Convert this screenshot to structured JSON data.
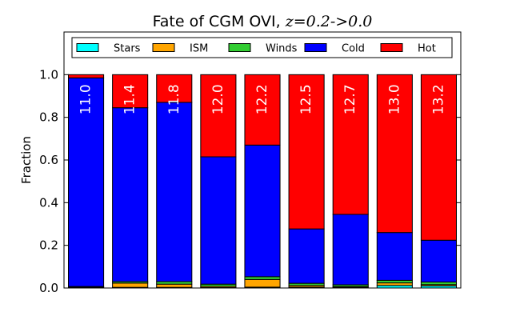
{
  "chart_data": {
    "type": "bar",
    "stacked": true,
    "title": "Fate of CGM OVI, ",
    "title_math": "z=0.2->0.0",
    "xlabel": "",
    "ylabel": "Fraction",
    "ylim": [
      0,
      1.2
    ],
    "yticks": [
      "0.0",
      "0.2",
      "0.4",
      "0.6",
      "0.8",
      "1.0"
    ],
    "grid": false,
    "legend_position": "top",
    "categories": [
      "11.0",
      "11.4",
      "11.8",
      "12.0",
      "12.2",
      "12.5",
      "12.7",
      "13.0",
      "13.2"
    ],
    "series": [
      {
        "name": "Stars",
        "color": "#00ffff",
        "values": [
          0.002,
          0.003,
          0.003,
          0.002,
          0.004,
          0.004,
          0.003,
          0.012,
          0.01
        ]
      },
      {
        "name": "ISM",
        "color": "#ffa500",
        "values": [
          0.003,
          0.02,
          0.015,
          0.006,
          0.036,
          0.008,
          0.004,
          0.012,
          0.006
        ]
      },
      {
        "name": "Winds",
        "color": "#32cd32",
        "values": [
          0.002,
          0.007,
          0.012,
          0.01,
          0.013,
          0.01,
          0.008,
          0.012,
          0.012
        ]
      },
      {
        "name": "Cold",
        "color": "#0000ff",
        "values": [
          0.978,
          0.815,
          0.84,
          0.597,
          0.617,
          0.255,
          0.33,
          0.224,
          0.196
        ]
      },
      {
        "name": "Hot",
        "color": "#ff0000",
        "values": [
          0.015,
          0.155,
          0.13,
          0.385,
          0.33,
          0.723,
          0.655,
          0.74,
          0.776
        ]
      }
    ]
  }
}
